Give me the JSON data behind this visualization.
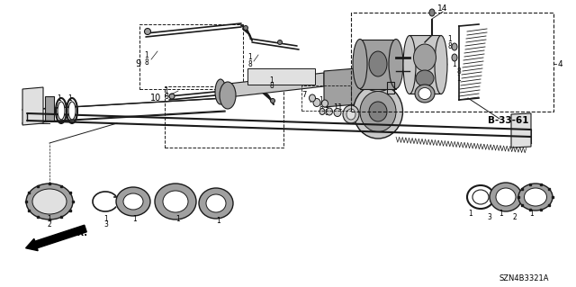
{
  "bg": "#ffffff",
  "lc": "#1a1a1a",
  "gray1": "#c8c8c8",
  "gray2": "#a0a0a0",
  "gray3": "#808080",
  "gray4": "#e0e0e0",
  "diagram_code": "SZN4B3321A",
  "ref_label": "B-33-61",
  "fig_w": 6.4,
  "fig_h": 3.19,
  "dpi": 100
}
